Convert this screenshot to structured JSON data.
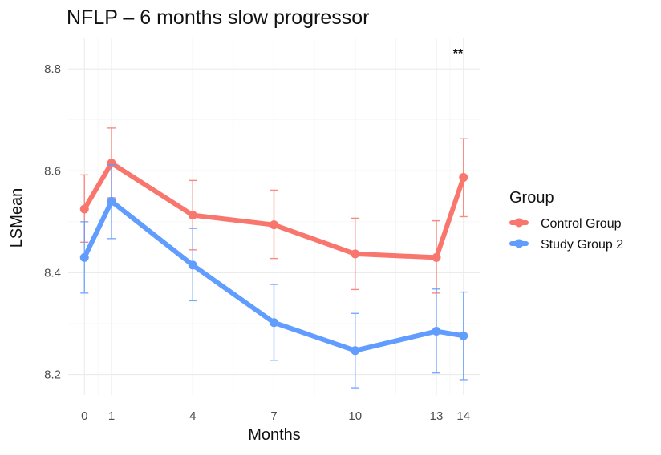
{
  "chart_data": {
    "type": "line",
    "title": "NFLP – 6 months slow progressor",
    "xlabel": "Months",
    "ylabel": "LSMean",
    "x": [
      0,
      1,
      4,
      7,
      10,
      13,
      14
    ],
    "x_ticks": [
      "0",
      "1",
      "4",
      "7",
      "10",
      "13",
      "14"
    ],
    "y_ticks": [
      "8.2",
      "8.4",
      "8.6",
      "8.8"
    ],
    "xlim": [
      -0.6,
      14.6
    ],
    "ylim": [
      8.16,
      8.86
    ],
    "grid": true,
    "legend_title": "Group",
    "legend_position": "right",
    "annotation": "**",
    "series": [
      {
        "name": "Control Group",
        "color": "#f8766d",
        "values": [
          8.525,
          8.615,
          8.513,
          8.494,
          8.437,
          8.43,
          8.587
        ],
        "lower": [
          8.46,
          8.547,
          8.445,
          8.428,
          8.367,
          8.36,
          8.51
        ],
        "upper": [
          8.592,
          8.684,
          8.581,
          8.562,
          8.507,
          8.502,
          8.663
        ]
      },
      {
        "name": "Study Group 2",
        "color": "#619cff",
        "values": [
          8.43,
          8.54,
          8.415,
          8.302,
          8.247,
          8.285,
          8.276
        ],
        "lower": [
          8.36,
          8.467,
          8.345,
          8.228,
          8.174,
          8.203,
          8.19
        ],
        "upper": [
          8.5,
          8.612,
          8.487,
          8.377,
          8.32,
          8.368,
          8.362
        ]
      }
    ]
  }
}
